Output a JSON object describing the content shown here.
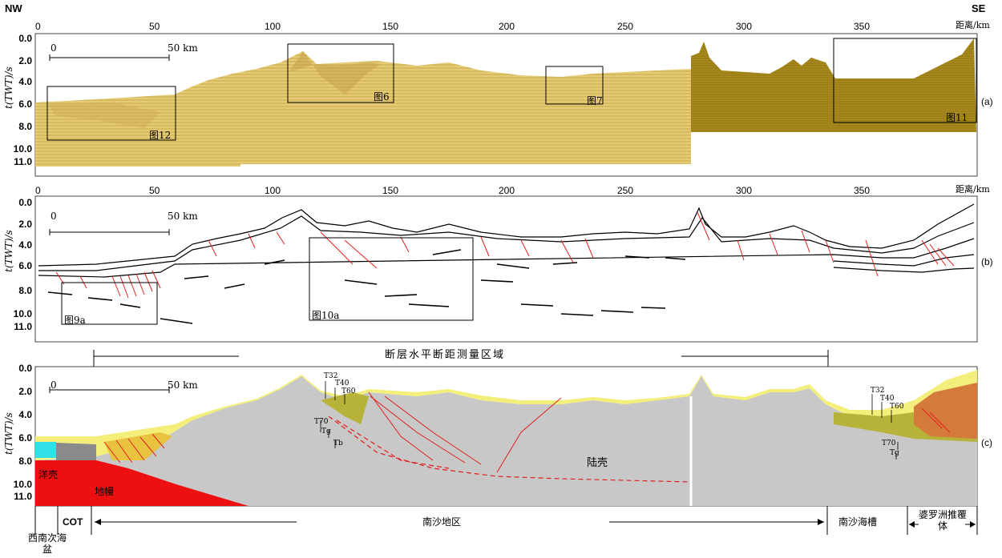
{
  "corner_labels": {
    "nw": "NW",
    "se": "SE"
  },
  "distance_label": "距离/km",
  "x_ticks": [
    "0",
    "50",
    "100",
    "150",
    "200",
    "250",
    "300",
    "350"
  ],
  "y_ticks": [
    "0.0",
    "2.0",
    "4.0",
    "6.0",
    "8.0",
    "10.0",
    "11.0"
  ],
  "y_axis_label": "t(TWT)/s",
  "scale_bar": {
    "zero": "0",
    "label": "50 km"
  },
  "panels": {
    "a": {
      "tag": "(a)",
      "insets": [
        "图12",
        "图6",
        "图7",
        "图11"
      ]
    },
    "b": {
      "tag": "(b)",
      "insets": [
        "图9a",
        "图10a"
      ]
    },
    "c": {
      "tag": "(c)"
    }
  },
  "measure_region": "断层水平断距测量区域",
  "horizons_left": [
    "T32",
    "T40",
    "T60",
    "T70",
    "Tg",
    "Tb"
  ],
  "horizons_right": [
    "T32",
    "T40",
    "T60",
    "T70",
    "Tg"
  ],
  "units": {
    "oceanic_crust": "洋壳",
    "mantle": "地幔",
    "continental_crust": "陆壳"
  },
  "bottom_regions": {
    "southwest_basin": "西南次海盆",
    "cot": "COT",
    "nansha": "南沙地区",
    "nansha_trough": "南沙海槽",
    "borneo": "婆罗洲推覆体"
  },
  "colors": {
    "seismic_light": "#e2c46a",
    "seismic_dark": "#a88718",
    "crust": "#c8c8c8",
    "mantle": "#ee1010",
    "oceanic": "#33e0e8",
    "sediment_yellow": "#f4ee7a",
    "sediment_olive": "#b7b33a",
    "fault": "#e02020",
    "borneo_orange": "#d47a3a"
  }
}
